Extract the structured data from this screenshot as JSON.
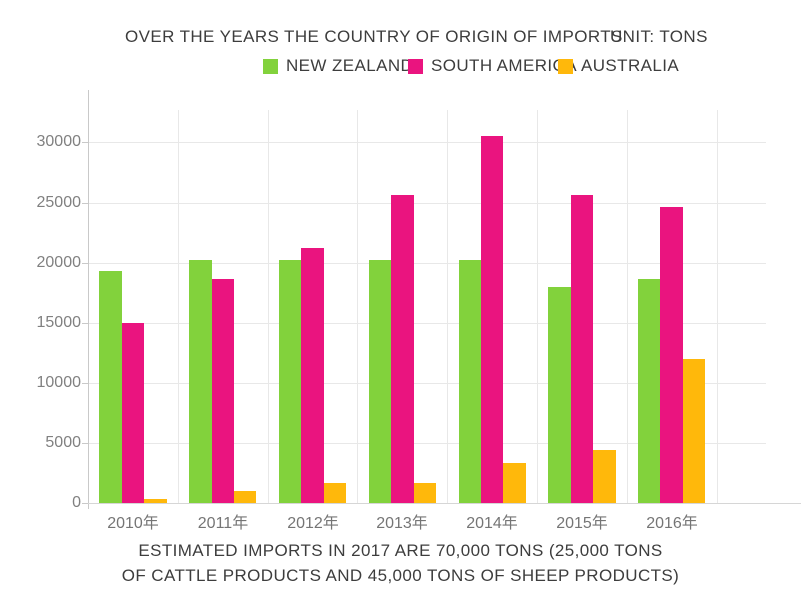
{
  "header": {
    "title": "OVER THE YEARS THE COUNTRY OF ORIGIN OF IMPORTS",
    "unit_label": "UNIT: TONS"
  },
  "legend": [
    {
      "label": "NEW ZEALAND",
      "color": "#82D23C"
    },
    {
      "label": "SOUTH AMERICA",
      "color": "#EA147F"
    },
    {
      "label": "AUSTRALIA",
      "color": "#FFB80B"
    }
  ],
  "caption": {
    "line1": "ESTIMATED IMPORTS IN 2017 ARE 70,000 TONS (25,000 TONS",
    "line2": "OF CATTLE PRODUCTS AND 45,000 TONS OF SHEEP PRODUCTS)"
  },
  "chart_data": {
    "type": "bar",
    "title": "OVER THE YEARS THE COUNTRY OF ORIGIN OF IMPORTS",
    "unit": "UNIT: TONS",
    "categories": [
      "2010年",
      "2011年",
      "2012年",
      "2013年",
      "2014年",
      "2015年",
      "2016年"
    ],
    "series": [
      {
        "name": "NEW ZEALAND",
        "color": "#82D23C",
        "values": [
          19300,
          20200,
          20200,
          20200,
          20200,
          18000,
          18600
        ]
      },
      {
        "name": "SOUTH AMERICA",
        "color": "#EA147F",
        "values": [
          15000,
          18600,
          21200,
          25600,
          30500,
          25600,
          24600
        ]
      },
      {
        "name": "AUSTRALIA",
        "color": "#FFB80B",
        "values": [
          300,
          1000,
          1700,
          1700,
          3300,
          4400,
          12000
        ]
      }
    ],
    "xlabel": "",
    "ylabel": "",
    "ylim": [
      0,
      32500
    ],
    "y_ticks": [
      0,
      5000,
      10000,
      15000,
      20000,
      25000,
      30000
    ],
    "grid": true,
    "legend_position": "top"
  },
  "colors": {
    "grid_line": "#E8E8E8",
    "axis_line": "#C9C9C9",
    "tick_label": "#808080",
    "text": "#3D3D3D"
  }
}
